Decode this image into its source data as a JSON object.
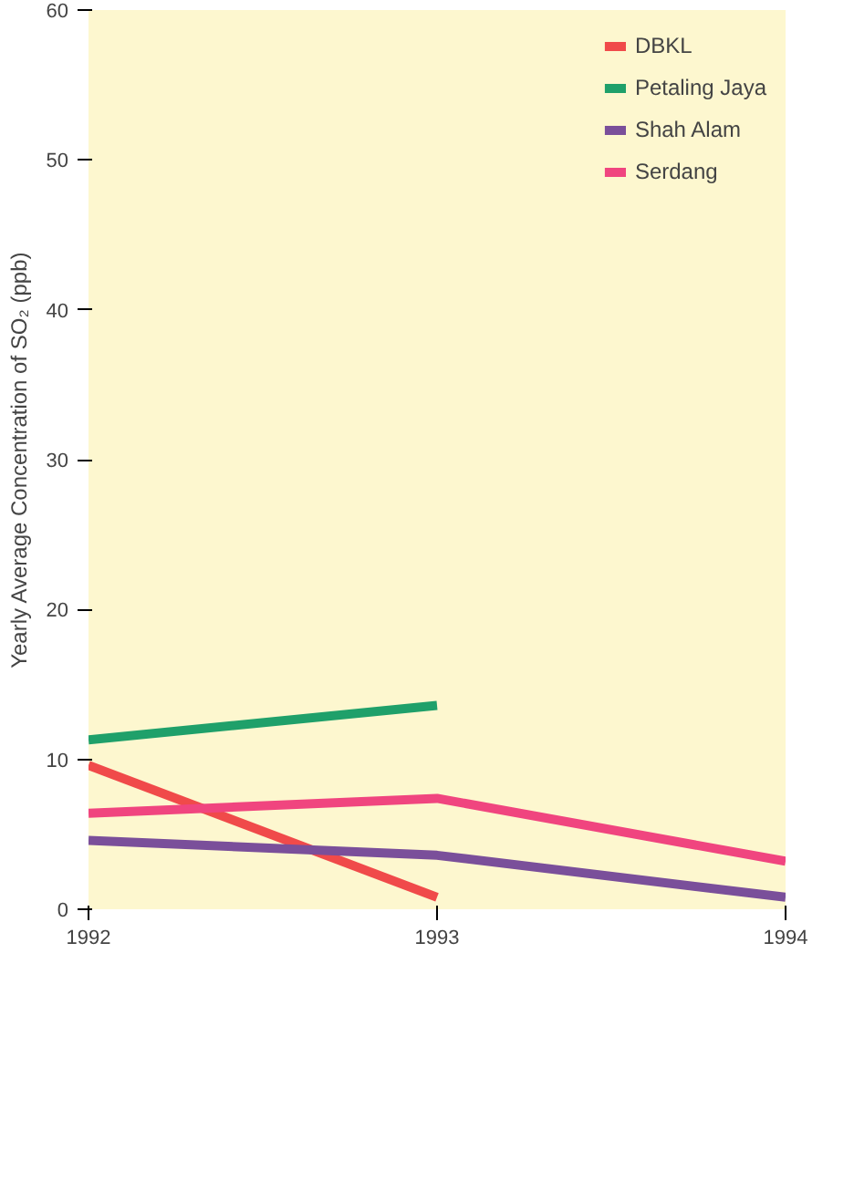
{
  "chart_data": {
    "type": "line",
    "ylabel": "Yearly Average Concentration of SO₂ (ppb)",
    "x": [
      1992,
      1993,
      1994
    ],
    "xlim": [
      1992,
      1994
    ],
    "xticks": [
      1992,
      1993,
      1994
    ],
    "ylim": [
      0,
      60
    ],
    "yticks": [
      0,
      10,
      20,
      30,
      40,
      50,
      60
    ],
    "grid": false,
    "legend": "top right",
    "series": [
      {
        "name": "DBKL",
        "color": "#f04a4a",
        "values": [
          9.6,
          0.8,
          null
        ]
      },
      {
        "name": "Petaling Jaya",
        "color": "#1fa06a",
        "values": [
          11.3,
          13.6,
          null
        ]
      },
      {
        "name": "Shah Alam",
        "color": "#7a4f9a",
        "values": [
          4.6,
          3.6,
          0.8
        ]
      },
      {
        "name": "Serdang",
        "color": "#f0457f",
        "values": [
          6.4,
          7.4,
          3.2
        ]
      }
    ]
  }
}
